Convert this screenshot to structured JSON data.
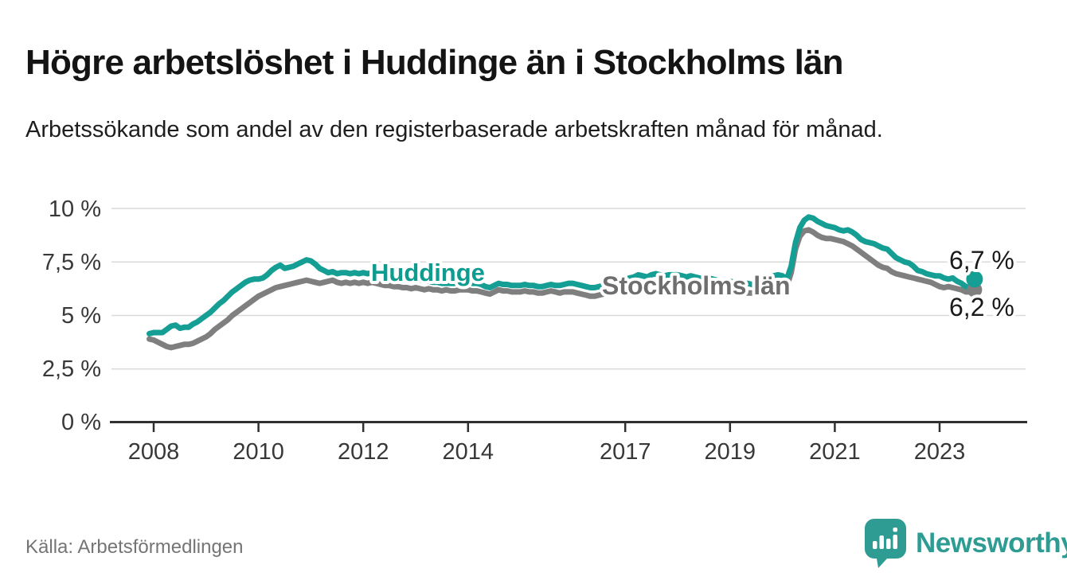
{
  "header": {
    "title": "Högre arbetslöshet i Huddinge än i Stockholms län",
    "subtitle": "Arbetssökande som andel av den registerbaserade arbetskraften månad för månad."
  },
  "footer": {
    "source": "Källa: Arbetsförmedlingen",
    "logo_text": "Newsworthy"
  },
  "colors": {
    "huddinge": "#149e94",
    "huddinge_label": "#0e9c90",
    "stockholm": "#7f7f7f",
    "stockholm_label": "#6e6e6e",
    "logo_teal": "#2e9c93",
    "gridline": "#dadada",
    "axis": "#303030"
  },
  "chart_data": {
    "type": "line",
    "title": "Högre arbetslöshet i Huddinge än i Stockholms län",
    "subtitle": "Arbetssökande som andel av den registerbaserade arbetskraften månad för månad.",
    "unit": "%",
    "grid": true,
    "legend": "inline-labels",
    "x_axis": {
      "range_years": [
        2007.9,
        2023.8
      ],
      "ticks": [
        "2008",
        "2010",
        "2012",
        "2014",
        "2017",
        "2019",
        "2021",
        "2023"
      ]
    },
    "y_axis": {
      "unit": "%",
      "range": [
        0,
        10
      ],
      "ticks": [
        {
          "value": 10,
          "label": "10 %"
        },
        {
          "value": 7.5,
          "label": "7,5 %"
        },
        {
          "value": 5,
          "label": "5 %"
        },
        {
          "value": 2.5,
          "label": "2,5 %"
        },
        {
          "value": 0,
          "label": "0 %"
        }
      ]
    },
    "series": [
      {
        "id": "stockholm",
        "name": "Stockholms län",
        "color": "#7f7f7f",
        "end_label": "6,2 %",
        "latest_value": 6.2,
        "start": "2007-12",
        "step_months": 1,
        "values": [
          3.9,
          3.85,
          3.75,
          3.65,
          3.55,
          3.5,
          3.55,
          3.6,
          3.65,
          3.65,
          3.7,
          3.8,
          3.9,
          4.0,
          4.15,
          4.35,
          4.5,
          4.65,
          4.8,
          5.0,
          5.15,
          5.3,
          5.45,
          5.6,
          5.75,
          5.9,
          6.0,
          6.1,
          6.2,
          6.3,
          6.35,
          6.4,
          6.45,
          6.5,
          6.55,
          6.6,
          6.65,
          6.6,
          6.55,
          6.5,
          6.55,
          6.6,
          6.65,
          6.55,
          6.5,
          6.55,
          6.5,
          6.55,
          6.5,
          6.55,
          6.5,
          6.55,
          6.5,
          6.45,
          6.4,
          6.4,
          6.35,
          6.35,
          6.3,
          6.3,
          6.25,
          6.3,
          6.25,
          6.2,
          6.25,
          6.2,
          6.2,
          6.15,
          6.2,
          6.15,
          6.15,
          6.2,
          6.2,
          6.2,
          6.15,
          6.15,
          6.1,
          6.05,
          6.0,
          6.1,
          6.2,
          6.15,
          6.15,
          6.1,
          6.1,
          6.1,
          6.15,
          6.1,
          6.1,
          6.05,
          6.05,
          6.1,
          6.15,
          6.1,
          6.05,
          6.1,
          6.1,
          6.1,
          6.05,
          6.0,
          5.95,
          5.9,
          5.9,
          5.95,
          6.0,
          6.05,
          6.1,
          6.15,
          6.2,
          6.25,
          6.3,
          6.35,
          6.4,
          6.35,
          6.3,
          6.35,
          6.4,
          6.35,
          6.3,
          6.35,
          6.35,
          6.4,
          6.35,
          6.3,
          6.3,
          6.25,
          6.2,
          6.2,
          6.25,
          6.2,
          6.15,
          6.1,
          6.1,
          6.2,
          6.15,
          6.1,
          6.1,
          6.05,
          6.05,
          6.1,
          6.15,
          6.2,
          6.3,
          6.4,
          6.45,
          6.4,
          6.35,
          7.0,
          8.1,
          8.7,
          8.95,
          9.0,
          8.9,
          8.75,
          8.65,
          8.6,
          8.6,
          8.55,
          8.5,
          8.45,
          8.35,
          8.25,
          8.1,
          7.95,
          7.8,
          7.65,
          7.5,
          7.35,
          7.25,
          7.2,
          7.05,
          6.95,
          6.9,
          6.85,
          6.8,
          6.75,
          6.7,
          6.65,
          6.6,
          6.55,
          6.45,
          6.35,
          6.3,
          6.35,
          6.3,
          6.25,
          6.2,
          6.1,
          6.1,
          6.2
        ]
      },
      {
        "id": "huddinge",
        "name": "Huddinge",
        "color": "#149e94",
        "end_label": "6,7 %",
        "latest_value": 6.7,
        "start": "2007-12",
        "step_months": 1,
        "values": [
          4.15,
          4.2,
          4.2,
          4.2,
          4.35,
          4.5,
          4.55,
          4.4,
          4.45,
          4.45,
          4.6,
          4.7,
          4.85,
          5.0,
          5.15,
          5.35,
          5.55,
          5.7,
          5.9,
          6.1,
          6.25,
          6.4,
          6.55,
          6.65,
          6.7,
          6.7,
          6.75,
          6.9,
          7.1,
          7.25,
          7.35,
          7.2,
          7.25,
          7.3,
          7.4,
          7.5,
          7.6,
          7.55,
          7.4,
          7.2,
          7.1,
          7.0,
          7.05,
          6.95,
          7.0,
          7.0,
          6.95,
          7.0,
          6.95,
          7.0,
          6.95,
          7.0,
          7.05,
          6.95,
          6.9,
          6.85,
          6.8,
          6.8,
          6.75,
          6.7,
          6.7,
          6.7,
          6.65,
          6.6,
          6.6,
          6.55,
          6.55,
          6.5,
          6.5,
          6.5,
          6.5,
          6.55,
          6.55,
          6.55,
          6.5,
          6.5,
          6.45,
          6.35,
          6.3,
          6.4,
          6.5,
          6.45,
          6.45,
          6.4,
          6.4,
          6.4,
          6.45,
          6.4,
          6.4,
          6.35,
          6.35,
          6.4,
          6.45,
          6.4,
          6.4,
          6.45,
          6.5,
          6.5,
          6.45,
          6.4,
          6.35,
          6.3,
          6.3,
          6.35,
          6.4,
          6.5,
          6.55,
          6.6,
          6.65,
          6.7,
          6.75,
          6.8,
          6.9,
          6.85,
          6.8,
          6.9,
          6.95,
          6.9,
          6.85,
          6.9,
          6.9,
          6.9,
          6.85,
          6.8,
          6.85,
          6.8,
          6.75,
          6.7,
          6.75,
          6.7,
          6.65,
          6.6,
          6.6,
          6.6,
          6.55,
          6.5,
          6.45,
          6.5,
          6.45,
          6.5,
          6.55,
          6.6,
          6.7,
          6.85,
          6.9,
          6.85,
          6.7,
          7.3,
          8.4,
          9.1,
          9.45,
          9.6,
          9.55,
          9.4,
          9.3,
          9.2,
          9.15,
          9.1,
          9.0,
          8.95,
          9.0,
          8.9,
          8.75,
          8.55,
          8.45,
          8.4,
          8.35,
          8.25,
          8.15,
          8.1,
          7.9,
          7.7,
          7.6,
          7.5,
          7.45,
          7.3,
          7.1,
          7.05,
          6.95,
          6.9,
          6.85,
          6.85,
          6.75,
          6.7,
          6.75,
          6.6,
          6.5,
          6.35,
          6.3,
          6.7
        ]
      }
    ]
  }
}
